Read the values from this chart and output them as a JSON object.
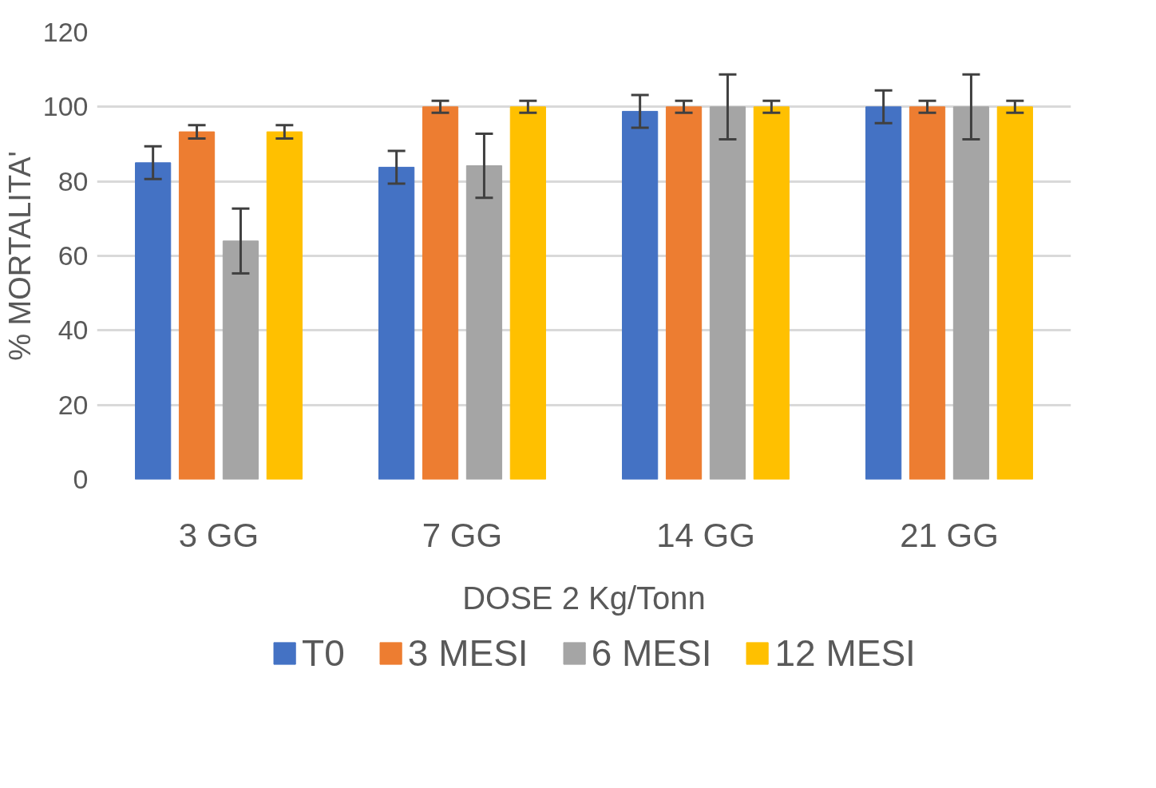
{
  "chart_data": {
    "type": "bar",
    "xlabel": "DOSE 2 Kg/Tonn",
    "ylabel": "% MORTALITA'",
    "categories": [
      "3 GG",
      "7 GG",
      "14 GG",
      "21 GG"
    ],
    "series": [
      {
        "name": "T0",
        "color": "#4472c4",
        "values": [
          85,
          83.8,
          98.8,
          100
        ],
        "errors": [
          4.4,
          4.4,
          4.4,
          4.4
        ]
      },
      {
        "name": "3 MESI",
        "color": "#ed7d31",
        "values": [
          93.3,
          100,
          100,
          100
        ],
        "errors": [
          1.8,
          1.6,
          1.6,
          1.6
        ]
      },
      {
        "name": "6 MESI",
        "color": "#a5a5a5",
        "values": [
          64,
          84.2,
          100,
          100
        ],
        "errors": [
          8.7,
          8.6,
          8.7,
          8.7
        ]
      },
      {
        "name": "12 MESI",
        "color": "#ffc000",
        "values": [
          93.3,
          100,
          100,
          100
        ],
        "errors": [
          1.8,
          1.6,
          1.6,
          1.6
        ]
      }
    ],
    "ylim": [
      0,
      120
    ],
    "yticks": [
      0,
      20,
      40,
      60,
      80,
      100,
      120
    ],
    "grid": "y",
    "legend": "bottom"
  }
}
